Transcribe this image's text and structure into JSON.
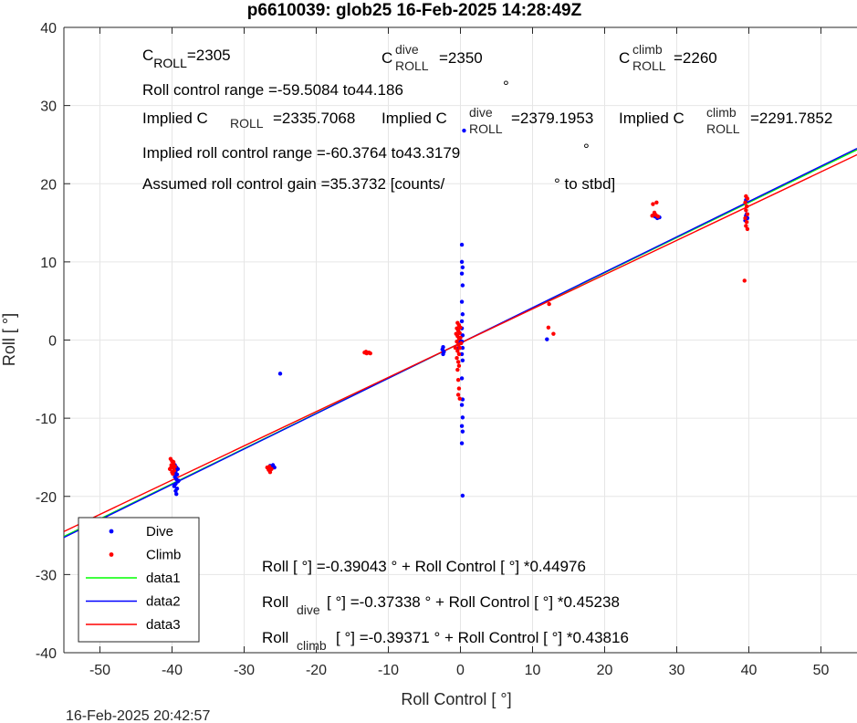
{
  "chart_data": {
    "type": "scatter",
    "title": "p6610039: glob25 16-Feb-2025 14:28:49Z",
    "xlabel": "Roll Control [   °]",
    "ylabel": "Roll [  °]",
    "xlim": [
      -55,
      55
    ],
    "ylim": [
      -40,
      40
    ],
    "xticks": [
      -50,
      -40,
      -30,
      -20,
      -10,
      0,
      10,
      20,
      30,
      40,
      50
    ],
    "yticks": [
      -40,
      -30,
      -20,
      -10,
      0,
      10,
      20,
      30,
      40
    ],
    "grid": true,
    "legend_position": "bottom-left",
    "footer": "16-Feb-2025 20:42:57",
    "series": [
      {
        "name": "Dive",
        "kind": "scatter",
        "color": "#0000ff",
        "points": [
          [
            -39.6,
            -16.0
          ],
          [
            -39.4,
            -16.3
          ],
          [
            -39.5,
            -16.8
          ],
          [
            -39.3,
            -17.2
          ],
          [
            -39.6,
            -17.5
          ],
          [
            -39.4,
            -17.8
          ],
          [
            -39.2,
            -18.1
          ],
          [
            -39.5,
            -18.4
          ],
          [
            -39.7,
            -18.7
          ],
          [
            -39.3,
            -19.0
          ],
          [
            -39.5,
            -19.3
          ],
          [
            -39.4,
            -19.7
          ],
          [
            -39.2,
            -16.5
          ],
          [
            -39.6,
            -17.0
          ],
          [
            -39.1,
            -18.0
          ],
          [
            -26.2,
            -16.2
          ],
          [
            -26.0,
            -16.0
          ],
          [
            -25.8,
            -16.3
          ],
          [
            -26.4,
            -16.1
          ],
          [
            -25.0,
            -4.3
          ],
          [
            -2.4,
            -0.9
          ],
          [
            -2.5,
            -1.2
          ],
          [
            -2.3,
            -1.5
          ],
          [
            -2.4,
            -1.8
          ],
          [
            0.2,
            12.2
          ],
          [
            0.2,
            10.0
          ],
          [
            0.3,
            9.3
          ],
          [
            0.2,
            8.5
          ],
          [
            0.3,
            7.0
          ],
          [
            0.2,
            4.9
          ],
          [
            0.3,
            3.3
          ],
          [
            0.2,
            2.4
          ],
          [
            0.2,
            1.5
          ],
          [
            0.3,
            0.6
          ],
          [
            0.2,
            -0.2
          ],
          [
            0.3,
            -1.0
          ],
          [
            0.2,
            -1.8
          ],
          [
            0.3,
            -2.6
          ],
          [
            0.2,
            -4.9
          ],
          [
            0.3,
            -7.6
          ],
          [
            0.2,
            -8.3
          ],
          [
            0.3,
            -9.9
          ],
          [
            0.2,
            -11.0
          ],
          [
            0.3,
            -11.7
          ],
          [
            0.2,
            -13.2
          ],
          [
            0.3,
            -19.9
          ],
          [
            0.5,
            26.8
          ],
          [
            -0.2,
            -0.5
          ],
          [
            -0.4,
            -1.1
          ],
          [
            -0.1,
            -0.3
          ],
          [
            12.0,
            0.1
          ],
          [
            27.0,
            15.8
          ],
          [
            27.3,
            15.6
          ],
          [
            27.6,
            15.7
          ],
          [
            26.8,
            16.0
          ],
          [
            39.6,
            15.9
          ],
          [
            39.8,
            15.6
          ],
          [
            39.5,
            15.3
          ],
          [
            39.7,
            16.1
          ],
          [
            39.6,
            17.9
          ]
        ]
      },
      {
        "name": "Climb",
        "kind": "scatter",
        "color": "#ff0000",
        "points": [
          [
            -40.2,
            -15.2
          ],
          [
            -40.0,
            -15.5
          ],
          [
            -39.8,
            -15.8
          ],
          [
            -40.1,
            -16.0
          ],
          [
            -39.9,
            -16.3
          ],
          [
            -40.3,
            -16.5
          ],
          [
            -39.7,
            -16.7
          ],
          [
            -40.0,
            -16.9
          ],
          [
            -39.6,
            -16.2
          ],
          [
            -40.2,
            -16.4
          ],
          [
            -39.9,
            -17.1
          ],
          [
            -39.8,
            -15.6
          ],
          [
            -26.8,
            -16.3
          ],
          [
            -26.6,
            -16.6
          ],
          [
            -26.4,
            -16.9
          ],
          [
            -26.2,
            -16.5
          ],
          [
            -26.5,
            -16.2
          ],
          [
            -13.3,
            -1.6
          ],
          [
            -13.0,
            -1.7
          ],
          [
            -12.7,
            -1.6
          ],
          [
            -12.5,
            -1.7
          ],
          [
            -13.1,
            -1.5
          ],
          [
            -0.4,
            2.2
          ],
          [
            -0.2,
            1.9
          ],
          [
            -0.5,
            1.5
          ],
          [
            -0.3,
            1.2
          ],
          [
            -0.1,
            0.9
          ],
          [
            -0.4,
            0.5
          ],
          [
            -0.2,
            0.2
          ],
          [
            -0.5,
            -0.2
          ],
          [
            -0.3,
            -0.6
          ],
          [
            -0.1,
            -1.0
          ],
          [
            -0.4,
            -1.4
          ],
          [
            -0.2,
            -1.8
          ],
          [
            -0.5,
            -2.3
          ],
          [
            -0.3,
            -2.8
          ],
          [
            -0.2,
            -3.3
          ],
          [
            -0.4,
            -3.8
          ],
          [
            -0.3,
            -5.1
          ],
          [
            -0.2,
            -6.2
          ],
          [
            -0.3,
            -7.0
          ],
          [
            -0.1,
            -7.5
          ],
          [
            0.0,
            0.3
          ],
          [
            0.1,
            -0.4
          ],
          [
            -0.6,
            0.8
          ],
          [
            -0.7,
            -1.0
          ],
          [
            0.0,
            1.6
          ],
          [
            12.3,
            4.6
          ],
          [
            12.2,
            1.6
          ],
          [
            12.9,
            0.8
          ],
          [
            26.7,
            17.4
          ],
          [
            27.2,
            17.6
          ],
          [
            26.9,
            16.3
          ],
          [
            27.1,
            16.0
          ],
          [
            26.6,
            15.9
          ],
          [
            27.4,
            15.8
          ],
          [
            39.6,
            18.4
          ],
          [
            39.8,
            18.1
          ],
          [
            39.5,
            17.6
          ],
          [
            39.7,
            17.1
          ],
          [
            39.6,
            16.6
          ],
          [
            39.8,
            16.1
          ],
          [
            39.5,
            15.6
          ],
          [
            39.7,
            15.1
          ],
          [
            39.6,
            14.6
          ],
          [
            39.8,
            14.2
          ],
          [
            39.4,
            7.6
          ]
        ]
      },
      {
        "name": "data1",
        "kind": "line",
        "color": "#00ff00",
        "intercept": -0.39043,
        "slope": 0.44976
      },
      {
        "name": "data2",
        "kind": "line",
        "color": "#0000ff",
        "intercept": -0.37338,
        "slope": 0.45238
      },
      {
        "name": "data3",
        "kind": "line",
        "color": "#ff0000",
        "intercept": -0.39371,
        "slope": 0.43816
      }
    ],
    "annotations": {
      "c_roll": "C",
      "c_roll_sub": "ROLL",
      "c_roll_val": "=2305",
      "c_dive": "C",
      "c_dive_sup": "dive",
      "c_dive_sub": "ROLL",
      "c_dive_val": "=2350",
      "c_climb": "C",
      "c_climb_sup": "climb",
      "c_climb_sub": "ROLL",
      "c_climb_val": "=2260",
      "control_range": "Roll control range =-59.5084 to44.186",
      "implied_c": "Implied C",
      "implied_roll_sub": "ROLL",
      "implied_c_val": "=2335.7068",
      "implied_c_dive": "Implied C",
      "implied_dive_sup": "dive",
      "implied_dive_sub": "ROLL",
      "implied_c_dive_val": "=2379.1953",
      "implied_c_climb": "Implied C",
      "implied_climb_sup": "climb",
      "implied_climb_sub": "ROLL",
      "implied_c_climb_val": "=2291.7852",
      "implied_range": "Implied roll control range =-60.3764 to43.3179",
      "gain_a": "Assumed roll control gain =35.3732 [counts/",
      "gain_b": "° to stbd]",
      "degree_1": "°",
      "degree_2": "°",
      "fit_all": "Roll [  °] =-0.39043    ° + Roll Control [     °] *0.44976",
      "fit_dive_a": "Roll",
      "fit_dive_sub": "dive",
      "fit_dive_b": "  [  °] =-0.37338    ° + Roll Control [     °] *0.45238",
      "fit_climb_a": "Roll",
      "fit_climb_sub": "climb",
      "fit_climb_b": "  [  °] =-0.39371    ° + Roll Control [     °] *0.43816"
    }
  }
}
